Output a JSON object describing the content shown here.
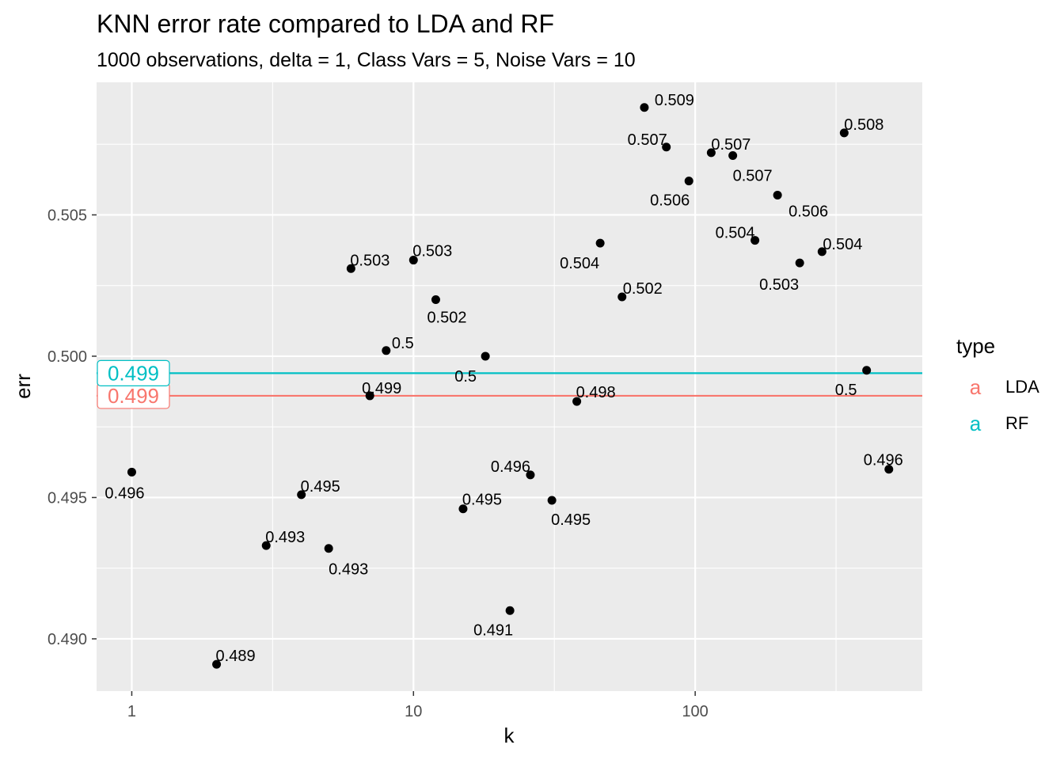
{
  "chart_data": {
    "type": "scatter",
    "title": "KNN error rate compared to LDA and RF",
    "subtitle": "1000 observations, delta = 1, Class Vars = 5, Noise Vars = 10",
    "xlabel": "k",
    "ylabel": "err",
    "x_scale": "log10",
    "xlim": [
      0.75,
      640
    ],
    "ylim": [
      0.48815,
      0.50969
    ],
    "x_ticks": [
      1,
      10,
      100
    ],
    "x_tick_labels": [
      "1",
      "10",
      "100"
    ],
    "y_ticks": [
      0.49,
      0.495,
      0.5,
      0.505
    ],
    "y_tick_labels": [
      "0.490",
      "0.495",
      "0.500",
      "0.505"
    ],
    "grid": true,
    "points": [
      {
        "x": 1,
        "y": 0.4959,
        "label": "0.496"
      },
      {
        "x": 2,
        "y": 0.4891,
        "label": "0.489"
      },
      {
        "x": 3,
        "y": 0.4933,
        "label": "0.493"
      },
      {
        "x": 4,
        "y": 0.4951,
        "label": "0.495"
      },
      {
        "x": 5,
        "y": 0.4932,
        "label": "0.493"
      },
      {
        "x": 6,
        "y": 0.5031,
        "label": "0.503"
      },
      {
        "x": 7,
        "y": 0.4986,
        "label": "0.499"
      },
      {
        "x": 8,
        "y": 0.5002,
        "label": "0.5"
      },
      {
        "x": 10,
        "y": 0.5034,
        "label": "0.503"
      },
      {
        "x": 12,
        "y": 0.502,
        "label": "0.502"
      },
      {
        "x": 15,
        "y": 0.4946,
        "label": "0.495"
      },
      {
        "x": 18,
        "y": 0.5,
        "label": "0.5"
      },
      {
        "x": 22,
        "y": 0.491,
        "label": "0.491"
      },
      {
        "x": 26,
        "y": 0.4958,
        "label": "0.496"
      },
      {
        "x": 31,
        "y": 0.4949,
        "label": "0.495"
      },
      {
        "x": 38,
        "y": 0.4984,
        "label": "0.498"
      },
      {
        "x": 46,
        "y": 0.504,
        "label": "0.504"
      },
      {
        "x": 55,
        "y": 0.5021,
        "label": "0.502"
      },
      {
        "x": 66,
        "y": 0.5088,
        "label": "0.509"
      },
      {
        "x": 79,
        "y": 0.5074,
        "label": "0.507"
      },
      {
        "x": 95,
        "y": 0.5062,
        "label": "0.506"
      },
      {
        "x": 114,
        "y": 0.5072,
        "label": "0.507"
      },
      {
        "x": 136,
        "y": 0.5071,
        "label": "0.507"
      },
      {
        "x": 163,
        "y": 0.5041,
        "label": "0.504"
      },
      {
        "x": 196,
        "y": 0.5057,
        "label": "0.506"
      },
      {
        "x": 235,
        "y": 0.5033,
        "label": "0.503"
      },
      {
        "x": 282,
        "y": 0.5037,
        "label": "0.504"
      },
      {
        "x": 338,
        "y": 0.5079,
        "label": "0.508"
      },
      {
        "x": 406,
        "y": 0.4995,
        "label": "0.5"
      },
      {
        "x": 487,
        "y": 0.496,
        "label": "0.496"
      }
    ],
    "reference_lines": [
      {
        "type": "LDA",
        "y": 0.4986,
        "label": "0.499",
        "color": "#F8766D"
      },
      {
        "type": "RF",
        "y": 0.4994,
        "label": "0.499",
        "color": "#00BFC4"
      }
    ],
    "legend": {
      "title": "type",
      "placement": "right",
      "key_glyph": "a",
      "entries": [
        {
          "name": "LDA",
          "color": "#F8766D"
        },
        {
          "name": "RF",
          "color": "#00BFC4"
        }
      ]
    },
    "colors": {
      "panel_background": "#EBEBEB",
      "grid": "#FFFFFF",
      "point": "#000000"
    }
  }
}
